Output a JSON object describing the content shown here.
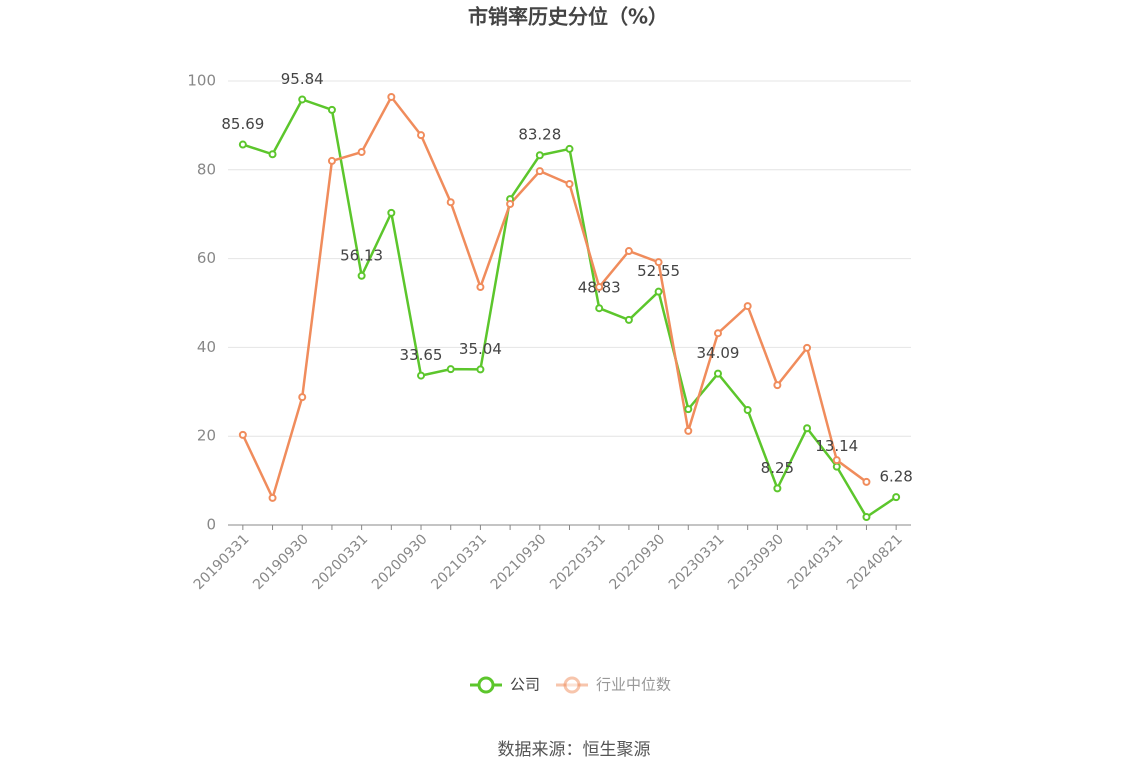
{
  "chart_data": {
    "type": "line",
    "title": "市销率历史分位（%）",
    "x": [
      "20190331",
      null,
      "20190930",
      null,
      "20200331",
      null,
      "20200930",
      null,
      "20210331",
      null,
      "20210930",
      null,
      "20220331",
      null,
      "20220930",
      null,
      "20230331",
      null,
      "20230930",
      null,
      "20240331",
      null,
      "20240821"
    ],
    "series": [
      {
        "name": "公司",
        "color": "#5cc62c",
        "values": [
          85.69,
          83.5,
          95.84,
          93.5,
          56.13,
          70.3,
          33.65,
          35.1,
          35.04,
          73.4,
          83.28,
          84.7,
          48.83,
          46.2,
          52.55,
          26.1,
          34.09,
          25.9,
          8.25,
          21.8,
          13.14,
          1.8,
          6.28
        ],
        "value_labels": [
          "85.69",
          null,
          "95.84",
          null,
          "56.13",
          null,
          "33.65",
          null,
          "35.04",
          null,
          "83.28",
          null,
          "48.83",
          null,
          "52.55",
          null,
          "34.09",
          null,
          "8.25",
          null,
          "13.14",
          null,
          "6.28"
        ]
      },
      {
        "name": "行业中位数",
        "color": "#f08c5c",
        "values": [
          20.3,
          6.1,
          28.8,
          82,
          84,
          96.4,
          87.8,
          72.7,
          53.6,
          72.3,
          79.7,
          76.8,
          53.6,
          61.7,
          59.2,
          21.2,
          43.2,
          49.3,
          31.5,
          39.9,
          14.6,
          9.7,
          null
        ]
      }
    ],
    "ylim": [
      0,
      100
    ],
    "yticks": [
      0,
      20,
      40,
      60,
      80,
      100
    ],
    "grid": true,
    "source": "数据来源：恒生聚源"
  }
}
